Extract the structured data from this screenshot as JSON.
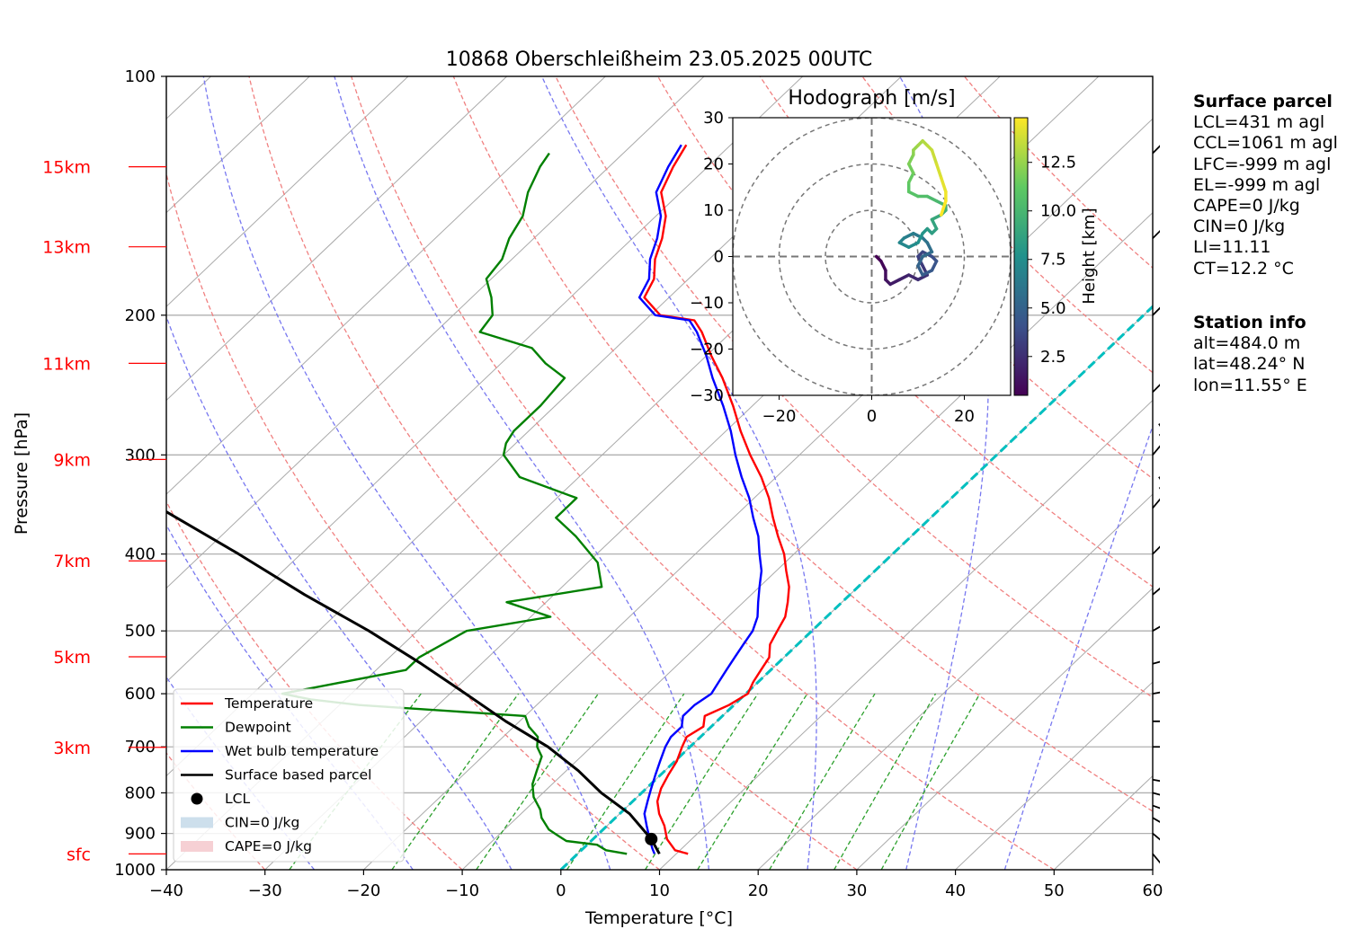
{
  "chart_data": {
    "type": "skew-t",
    "title": "10868 Oberschleißheim 23.05.2025 00UTC",
    "xlabel": "Temperature [°C]",
    "ylabel": "Pressure [hPa]",
    "xlim": [
      -40,
      60
    ],
    "ylim": [
      1000,
      100
    ],
    "x_ticks": [
      "−40",
      "−30",
      "−20",
      "−10",
      "0",
      "10",
      "20",
      "30",
      "40",
      "50",
      "60"
    ],
    "p_ticks": [
      "100",
      "200",
      "300",
      "400",
      "500",
      "600",
      "700",
      "800",
      "900",
      "1000"
    ],
    "height_labels": [
      {
        "label": "15km",
        "p": 130
      },
      {
        "label": "13km",
        "p": 164
      },
      {
        "label": "11km",
        "p": 230
      },
      {
        "label": "9km",
        "p": 304
      },
      {
        "label": "7km",
        "p": 408
      },
      {
        "label": "5km",
        "p": 539
      },
      {
        "label": "3km",
        "p": 701
      },
      {
        "label": "sfc",
        "p": 955
      }
    ],
    "series": [
      {
        "name": "Temperature",
        "color": "#ff0000",
        "points": [
          [
            11.2,
            955
          ],
          [
            9.5,
            945
          ],
          [
            7.5,
            915
          ],
          [
            5.8,
            880
          ],
          [
            4.0,
            850
          ],
          [
            2.5,
            820
          ],
          [
            1.5,
            790
          ],
          [
            0.8,
            760
          ],
          [
            0.2,
            730
          ],
          [
            -0.8,
            700
          ],
          [
            -1.4,
            680
          ],
          [
            -0.8,
            660
          ],
          [
            -1.8,
            640
          ],
          [
            -0.5,
            620
          ],
          [
            0.2,
            600
          ],
          [
            -0.5,
            580
          ],
          [
            -1.0,
            560
          ],
          [
            -1.5,
            540
          ],
          [
            -2.8,
            520
          ],
          [
            -3.5,
            500
          ],
          [
            -4.2,
            480
          ],
          [
            -5.5,
            460
          ],
          [
            -7.0,
            440
          ],
          [
            -9.0,
            420
          ],
          [
            -11.0,
            400
          ],
          [
            -13.5,
            380
          ],
          [
            -16.0,
            360
          ],
          [
            -18.5,
            340
          ],
          [
            -21.5,
            320
          ],
          [
            -25.0,
            300
          ],
          [
            -28.5,
            280
          ],
          [
            -32.0,
            260
          ],
          [
            -36.0,
            240
          ],
          [
            -39.5,
            225
          ],
          [
            -43.0,
            210
          ],
          [
            -45.0,
            203
          ],
          [
            -49.0,
            200
          ],
          [
            -52.5,
            190
          ],
          [
            -53.5,
            180
          ],
          [
            -55.5,
            170
          ],
          [
            -57.0,
            160
          ],
          [
            -59.0,
            150
          ],
          [
            -62.0,
            140
          ],
          [
            -63.5,
            130
          ],
          [
            -64.5,
            122
          ]
        ]
      },
      {
        "name": "Dewpoint",
        "color": "#008000",
        "points": [
          [
            5.0,
            955
          ],
          [
            2.5,
            945
          ],
          [
            1.0,
            930
          ],
          [
            -2.5,
            920
          ],
          [
            -4.0,
            905
          ],
          [
            -5.5,
            890
          ],
          [
            -7.5,
            860
          ],
          [
            -8.5,
            840
          ],
          [
            -10.5,
            810
          ],
          [
            -12.0,
            780
          ],
          [
            -13.0,
            750
          ],
          [
            -14.0,
            720
          ],
          [
            -15.5,
            700
          ],
          [
            -16.5,
            680
          ],
          [
            -18.5,
            660
          ],
          [
            -20.0,
            640
          ],
          [
            -38.0,
            620
          ],
          [
            -43.5,
            610
          ],
          [
            -47.0,
            600
          ],
          [
            -37.0,
            560
          ],
          [
            -37.0,
            540
          ],
          [
            -35.0,
            500
          ],
          [
            -28.0,
            480
          ],
          [
            -34.0,
            460
          ],
          [
            -26.0,
            440
          ],
          [
            -29.0,
            410
          ],
          [
            -34.0,
            380
          ],
          [
            -38.0,
            360
          ],
          [
            -38.0,
            340
          ],
          [
            -46.0,
            320
          ],
          [
            -50.0,
            300
          ],
          [
            -51.0,
            290
          ],
          [
            -51.5,
            280
          ],
          [
            -51.5,
            260
          ],
          [
            -52.0,
            240
          ],
          [
            -55.5,
            230
          ],
          [
            -58.5,
            220
          ],
          [
            -65.5,
            210
          ],
          [
            -66.0,
            200
          ],
          [
            -68.0,
            190
          ],
          [
            -70.5,
            180
          ],
          [
            -71.0,
            170
          ],
          [
            -72.5,
            160
          ],
          [
            -73.5,
            150
          ],
          [
            -75.5,
            140
          ],
          [
            -77.0,
            130
          ],
          [
            -77.5,
            125
          ]
        ]
      },
      {
        "name": "Wet bulb temperature",
        "color": "#0000ff",
        "points": [
          [
            7.8,
            955
          ],
          [
            7.0,
            940
          ],
          [
            5.5,
            910
          ],
          [
            4.0,
            880
          ],
          [
            2.5,
            850
          ],
          [
            1.5,
            820
          ],
          [
            0.5,
            790
          ],
          [
            -0.5,
            760
          ],
          [
            -1.5,
            730
          ],
          [
            -2.5,
            700
          ],
          [
            -3.0,
            680
          ],
          [
            -3.0,
            660
          ],
          [
            -4.0,
            640
          ],
          [
            -4.0,
            620
          ],
          [
            -3.5,
            600
          ],
          [
            -4.0,
            580
          ],
          [
            -4.5,
            560
          ],
          [
            -5.0,
            540
          ],
          [
            -5.5,
            520
          ],
          [
            -6.0,
            500
          ],
          [
            -7.0,
            480
          ],
          [
            -8.5,
            460
          ],
          [
            -10.0,
            440
          ],
          [
            -11.5,
            420
          ],
          [
            -13.5,
            400
          ],
          [
            -15.5,
            380
          ],
          [
            -18.0,
            360
          ],
          [
            -20.5,
            340
          ],
          [
            -23.5,
            320
          ],
          [
            -26.5,
            300
          ],
          [
            -29.5,
            280
          ],
          [
            -33.0,
            260
          ],
          [
            -37.0,
            240
          ],
          [
            -40.0,
            225
          ],
          [
            -43.5,
            210
          ],
          [
            -45.5,
            203
          ],
          [
            -49.5,
            200
          ],
          [
            -53.0,
            190
          ],
          [
            -54.0,
            180
          ],
          [
            -56.0,
            170
          ],
          [
            -57.5,
            160
          ],
          [
            -59.5,
            150
          ],
          [
            -62.5,
            140
          ],
          [
            -64.0,
            130
          ],
          [
            -65.0,
            122
          ]
        ]
      },
      {
        "name": "Surface based parcel",
        "color": "#000000",
        "points": [
          [
            8.3,
            955
          ],
          [
            5.9,
            915
          ],
          [
            1.0,
            850
          ],
          [
            -4.1,
            800
          ],
          [
            -8.8,
            750
          ],
          [
            -14.4,
            700
          ],
          [
            -21.4,
            650
          ],
          [
            -28.4,
            600
          ],
          [
            -36.1,
            550
          ],
          [
            -44.9,
            500
          ],
          [
            -55.3,
            450
          ],
          [
            -66.3,
            400
          ],
          [
            -79.2,
            350
          ],
          [
            -92.0,
            300
          ],
          [
            -104.0,
            260
          ],
          [
            -116.5,
            220
          ],
          [
            -125.5,
            198
          ]
        ]
      }
    ],
    "lcl": {
      "label": "LCL",
      "t": 5.9,
      "p": 915
    },
    "legend": {
      "placement": "lower-left",
      "entries": [
        "Temperature",
        "Dewpoint",
        "Wet bulb temperature",
        "Surface based parcel",
        "LCL",
        "CIN=0 J/kg",
        "CAPE=0 J/kg"
      ],
      "colors": [
        "#ff0000",
        "#008000",
        "#0000ff",
        "#000000",
        "#000000",
        "#cddfec",
        "#f6d0d4"
      ]
    },
    "wind_barbs": [
      {
        "p": 955,
        "speed_kn": 5,
        "dir": 320
      },
      {
        "p": 900,
        "speed_kn": 10,
        "dir": 310
      },
      {
        "p": 860,
        "speed_kn": 10,
        "dir": 300
      },
      {
        "p": 830,
        "speed_kn": 10,
        "dir": 290
      },
      {
        "p": 800,
        "speed_kn": 15,
        "dir": 285
      },
      {
        "p": 770,
        "speed_kn": 15,
        "dir": 280
      },
      {
        "p": 700,
        "speed_kn": 15,
        "dir": 270
      },
      {
        "p": 650,
        "speed_kn": 20,
        "dir": 270
      },
      {
        "p": 600,
        "speed_kn": 25,
        "dir": 260
      },
      {
        "p": 550,
        "speed_kn": 25,
        "dir": 255
      },
      {
        "p": 500,
        "speed_kn": 25,
        "dir": 240
      },
      {
        "p": 450,
        "speed_kn": 30,
        "dir": 230
      },
      {
        "p": 400,
        "speed_kn": 35,
        "dir": 225
      },
      {
        "p": 350,
        "speed_kn": 45,
        "dir": 220
      },
      {
        "p": 300,
        "speed_kn": 45,
        "dir": 220
      },
      {
        "p": 250,
        "speed_kn": 40,
        "dir": 225
      },
      {
        "p": 200,
        "speed_kn": 35,
        "dir": 225
      },
      {
        "p": 160,
        "speed_kn": 30,
        "dir": 225
      },
      {
        "p": 125,
        "speed_kn": 25,
        "dir": 225
      }
    ],
    "hodograph": {
      "title": "Hodograph [m/s]",
      "xlim": [
        -30,
        30
      ],
      "ylim": [
        -30,
        30
      ],
      "x_ticks": [
        "−20",
        "0",
        "20"
      ],
      "y_ticks": [
        "30",
        "20",
        "10",
        "0",
        "−10",
        "−20",
        "−30"
      ],
      "rings": [
        10,
        20,
        30
      ],
      "colorbar_label": "Height [km]",
      "colorbar_ticks": [
        "2.5",
        "5.0",
        "7.5",
        "10.0",
        "12.5"
      ],
      "height_range_km": [
        0.5,
        14.8
      ],
      "trace": [
        [
          1,
          0
        ],
        [
          2,
          -1
        ],
        [
          3,
          -3
        ],
        [
          3,
          -5
        ],
        [
          4,
          -6
        ],
        [
          6,
          -5
        ],
        [
          8,
          -4
        ],
        [
          10,
          -5
        ],
        [
          12,
          -4
        ],
        [
          11,
          -2
        ],
        [
          10,
          0
        ],
        [
          11,
          1
        ],
        [
          13,
          0
        ],
        [
          14,
          -1
        ],
        [
          13,
          -3
        ],
        [
          11,
          -4
        ],
        [
          10,
          -2
        ],
        [
          11,
          0
        ],
        [
          13,
          1
        ],
        [
          12,
          3
        ],
        [
          11,
          4
        ],
        [
          9,
          5
        ],
        [
          7,
          4
        ],
        [
          6,
          3
        ],
        [
          8,
          2
        ],
        [
          10,
          3
        ],
        [
          11,
          5
        ],
        [
          12,
          6
        ],
        [
          13,
          5
        ],
        [
          14,
          6
        ],
        [
          13,
          8
        ],
        [
          15,
          9
        ],
        [
          16,
          10
        ],
        [
          16,
          11
        ],
        [
          14,
          12
        ],
        [
          12,
          13
        ],
        [
          10,
          13
        ],
        [
          8,
          14
        ],
        [
          8,
          16
        ],
        [
          9,
          18
        ],
        [
          8,
          20
        ],
        [
          9,
          22
        ],
        [
          9,
          23
        ],
        [
          10,
          24
        ],
        [
          11,
          25
        ],
        [
          12,
          24
        ],
        [
          13,
          23
        ],
        [
          14,
          20
        ],
        [
          15,
          17
        ],
        [
          16,
          14
        ],
        [
          16,
          12
        ],
        [
          15,
          9
        ]
      ]
    },
    "isotherm_highlight": {
      "t": 0,
      "color": "#00bfbf"
    }
  },
  "info": {
    "surface_header": "Surface parcel",
    "surface_lines": [
      "LCL=431 m agl",
      "CCL=1061 m agl",
      "LFC=-999 m agl",
      "EL=-999 m agl",
      "CAPE=0 J/kg",
      "CIN=0 J/kg",
      "LI=11.11",
      "CT=12.2 °C"
    ],
    "station_header": "Station info",
    "station_lines": [
      "alt=484.0 m",
      "lat=48.24° N",
      "lon=11.55° E"
    ]
  }
}
